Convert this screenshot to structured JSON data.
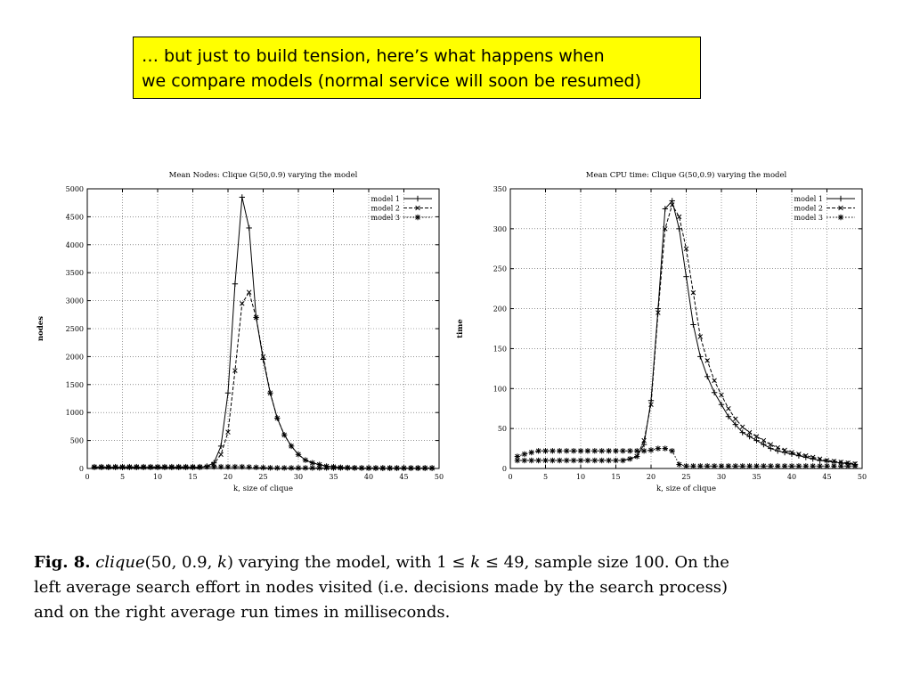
{
  "callout": {
    "line1": "… but just to build tension, here’s what happens when",
    "line2": "we compare models (normal service will soon be resumed)"
  },
  "caption": {
    "line1_pre": "Fig. 8.",
    "line1_func": "clique",
    "line1_args": "(50, 0.9, ",
    "line1_k": "k",
    "line1_close": ")",
    "line1_mid": " varying the model, with 1 ≤ ",
    "line1_k2": "k",
    "line1_post": " ≤ 49, sample size 100. On the",
    "line2": "left average search effort in nodes visited (i.e. decisions made by the search process)",
    "line3": "and on the right average run times in milliseconds."
  },
  "chart_data": [
    {
      "type": "line",
      "title": "Mean Nodes: Clique G(50,0.9) varying the model",
      "xlabel": "k, size of clique",
      "ylabel": "nodes",
      "xlim": [
        0,
        50
      ],
      "ylim": [
        0,
        5000
      ],
      "xticks": [
        "0",
        "5",
        "10",
        "15",
        "20",
        "25",
        "30",
        "35",
        "40",
        "45",
        "50"
      ],
      "yticks": [
        "0",
        "500",
        "1000",
        "1500",
        "2000",
        "2500",
        "3000",
        "3500",
        "4000",
        "4500",
        "5000"
      ],
      "grid": true,
      "legend": "top-right",
      "x": [
        1,
        2,
        3,
        4,
        5,
        6,
        7,
        8,
        9,
        10,
        11,
        12,
        13,
        14,
        15,
        16,
        17,
        18,
        19,
        20,
        21,
        22,
        23,
        24,
        25,
        26,
        27,
        28,
        29,
        30,
        31,
        32,
        33,
        34,
        35,
        36,
        37,
        38,
        39,
        40,
        41,
        42,
        43,
        44,
        45,
        46,
        47,
        48,
        49
      ],
      "series": [
        {
          "name": "model 1",
          "style": "solid",
          "marker": "+",
          "values": [
            20,
            20,
            20,
            20,
            20,
            20,
            20,
            20,
            20,
            20,
            20,
            20,
            20,
            20,
            20,
            20,
            40,
            100,
            400,
            1350,
            3300,
            4850,
            4300,
            2700,
            1950,
            1350,
            900,
            600,
            400,
            250,
            150,
            100,
            70,
            40,
            30,
            20,
            15,
            10,
            8,
            5,
            5,
            5,
            5,
            5,
            5,
            5,
            5,
            5,
            5
          ]
        },
        {
          "name": "model 2",
          "style": "dashed",
          "marker": "x",
          "values": [
            20,
            20,
            20,
            20,
            20,
            20,
            20,
            20,
            20,
            20,
            20,
            20,
            20,
            20,
            20,
            20,
            30,
            80,
            250,
            650,
            1750,
            2950,
            3150,
            2700,
            2000,
            1350,
            900,
            600,
            400,
            250,
            150,
            100,
            70,
            40,
            30,
            20,
            15,
            10,
            8,
            5,
            5,
            5,
            5,
            5,
            5,
            5,
            5,
            5,
            5
          ]
        },
        {
          "name": "model 3",
          "style": "dotted",
          "marker": "*",
          "values": [
            30,
            30,
            30,
            30,
            30,
            30,
            30,
            30,
            30,
            30,
            30,
            30,
            30,
            30,
            30,
            30,
            30,
            30,
            30,
            30,
            30,
            30,
            25,
            20,
            15,
            12,
            10,
            10,
            10,
            10,
            10,
            10,
            10,
            10,
            10,
            10,
            10,
            10,
            10,
            10,
            10,
            10,
            10,
            10,
            10,
            10,
            10,
            10,
            10
          ]
        }
      ]
    },
    {
      "type": "line",
      "title": "Mean CPU time: Clique G(50,0.9) varying the model",
      "xlabel": "k, size of clique",
      "ylabel": "time",
      "xlim": [
        0,
        50
      ],
      "ylim": [
        0,
        350
      ],
      "xticks": [
        "0",
        "5",
        "10",
        "15",
        "20",
        "25",
        "30",
        "35",
        "40",
        "45",
        "50"
      ],
      "yticks": [
        "0",
        "50",
        "100",
        "150",
        "200",
        "250",
        "300",
        "350"
      ],
      "grid": true,
      "legend": "top-right",
      "x": [
        1,
        2,
        3,
        4,
        5,
        6,
        7,
        8,
        9,
        10,
        11,
        12,
        13,
        14,
        15,
        16,
        17,
        18,
        19,
        20,
        21,
        22,
        23,
        24,
        25,
        26,
        27,
        28,
        29,
        30,
        31,
        32,
        33,
        34,
        35,
        36,
        37,
        38,
        39,
        40,
        41,
        42,
        43,
        44,
        45,
        46,
        47,
        48,
        49
      ],
      "series": [
        {
          "name": "model 1",
          "style": "solid",
          "marker": "+",
          "values": [
            10,
            10,
            10,
            10,
            10,
            10,
            10,
            10,
            10,
            10,
            10,
            10,
            10,
            10,
            10,
            10,
            12,
            15,
            30,
            85,
            200,
            325,
            335,
            300,
            240,
            180,
            140,
            115,
            95,
            80,
            65,
            55,
            45,
            40,
            35,
            30,
            25,
            22,
            20,
            18,
            16,
            14,
            12,
            10,
            9,
            8,
            7,
            6,
            5
          ]
        },
        {
          "name": "model 2",
          "style": "dashed",
          "marker": "x",
          "values": [
            10,
            10,
            10,
            10,
            10,
            10,
            10,
            10,
            10,
            10,
            10,
            10,
            10,
            10,
            10,
            10,
            12,
            15,
            35,
            80,
            195,
            300,
            330,
            315,
            275,
            220,
            165,
            135,
            110,
            92,
            75,
            62,
            52,
            45,
            40,
            35,
            30,
            26,
            23,
            20,
            18,
            16,
            14,
            12,
            10,
            9,
            8,
            7,
            6
          ]
        },
        {
          "name": "model 3",
          "style": "dotted",
          "marker": "*",
          "values": [
            15,
            18,
            20,
            22,
            22,
            22,
            22,
            22,
            22,
            22,
            22,
            22,
            22,
            22,
            22,
            22,
            22,
            22,
            22,
            23,
            25,
            25,
            22,
            5,
            3,
            3,
            3,
            3,
            3,
            3,
            3,
            3,
            3,
            3,
            3,
            3,
            3,
            3,
            3,
            3,
            3,
            3,
            3,
            3,
            3,
            3,
            3,
            3,
            3
          ]
        }
      ]
    }
  ]
}
